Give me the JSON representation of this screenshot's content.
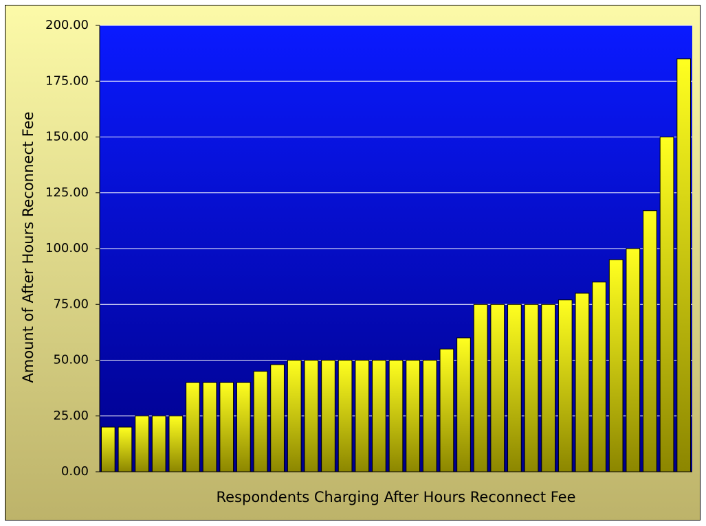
{
  "chart_data": {
    "type": "bar",
    "x_label": "Respondents Charging After Hours Reconnect Fee",
    "y_label": "Amount of After Hours Reconnect Fee",
    "categories": [
      null,
      null,
      null,
      null,
      null,
      null,
      null,
      null,
      null,
      null,
      null,
      null,
      null,
      null,
      null,
      null,
      null,
      null,
      null,
      null,
      null,
      null,
      null,
      null,
      null,
      null,
      null,
      null,
      null,
      null,
      null,
      null,
      null,
      null,
      null
    ],
    "values": [
      20,
      20,
      25,
      25,
      25,
      40,
      40,
      40,
      40,
      45,
      48,
      50,
      50,
      50,
      50,
      50,
      50,
      50,
      50,
      50,
      55,
      60,
      75,
      75,
      75,
      75,
      75,
      77,
      80,
      85,
      95,
      100,
      117,
      150,
      185
    ],
    "color": "#ffff00",
    "ylim": [
      0,
      200
    ],
    "yticks": [
      {
        "value": 0,
        "label": "0.00"
      },
      {
        "value": 25,
        "label": "25.00"
      },
      {
        "value": 50,
        "label": "50.00"
      },
      {
        "value": 75,
        "label": "75.00"
      },
      {
        "value": 100,
        "label": "100.00"
      },
      {
        "value": 125,
        "label": "125.00"
      },
      {
        "value": 150,
        "label": "150.00"
      },
      {
        "value": 175,
        "label": "175.00"
      },
      {
        "value": 200,
        "label": "200.00"
      }
    ],
    "grid": true
  }
}
